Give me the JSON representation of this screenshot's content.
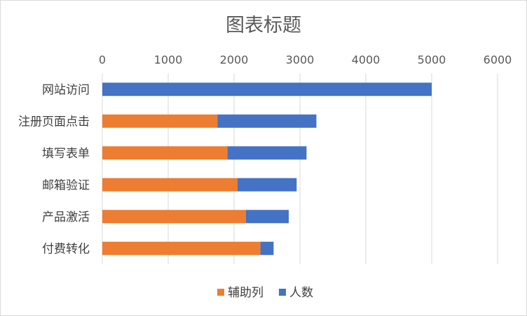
{
  "chart_data": {
    "type": "bar",
    "orientation": "horizontal",
    "stacked": true,
    "title": "图表标题",
    "categories": [
      "网站访问",
      "注册页面点击",
      "填写表单",
      "邮箱验证",
      "产品激活",
      "付费转化"
    ],
    "series": [
      {
        "name": "辅助列",
        "color": "#ED7D31",
        "values": [
          0,
          1750,
          1900,
          2050,
          2180,
          2400
        ]
      },
      {
        "name": "人数",
        "color": "#4472C4",
        "values": [
          5000,
          1500,
          1200,
          900,
          650,
          200
        ]
      }
    ],
    "xlim": [
      0,
      6000
    ],
    "xticks": [
      0,
      1000,
      2000,
      3000,
      4000,
      5000,
      6000
    ],
    "x_axis_position": "top",
    "grid": true,
    "legend": "bottom"
  }
}
